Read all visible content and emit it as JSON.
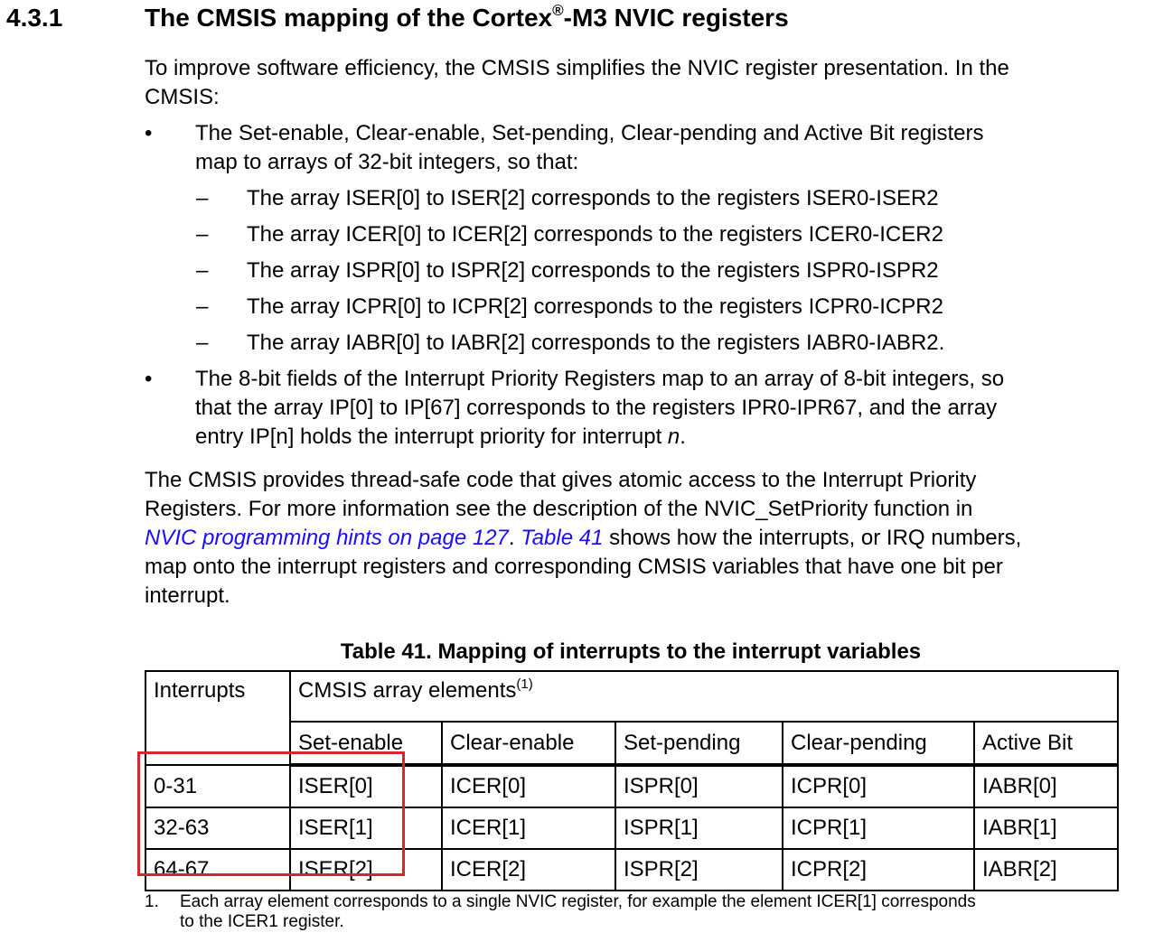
{
  "section": {
    "number": "4.3.1",
    "title_pre": "The CMSIS mapping of the Cortex",
    "title_reg": "®",
    "title_post": "-M3 NVIC registers"
  },
  "intro": {
    "line1": "To improve software efficiency, the CMSIS simplifies the NVIC register presentation. In the",
    "line2": "CMSIS:"
  },
  "bullets": [
    {
      "symbol": "•",
      "lines": [
        "The Set-enable, Clear-enable, Set-pending, Clear-pending and Active Bit registers",
        "map to arrays of 32-bit integers, so that:"
      ],
      "sub_items": [
        {
          "symbol": "–",
          "text": "The array ISER[0] to ISER[2] corresponds to the registers ISER0-ISER2"
        },
        {
          "symbol": "–",
          "text": "The array ICER[0] to ICER[2] corresponds to the registers ICER0-ICER2"
        },
        {
          "symbol": "–",
          "text": "The array ISPR[0] to ISPR[2] corresponds to the registers ISPR0-ISPR2"
        },
        {
          "symbol": "–",
          "text": "The array ICPR[0] to ICPR[2] corresponds to the registers ICPR0-ICPR2"
        },
        {
          "symbol": "–",
          "text": "The array IABR[0] to IABR[2] corresponds to the registers IABR0-IABR2."
        }
      ]
    },
    {
      "symbol": "•",
      "lines": [
        "The 8-bit fields of the Interrupt Priority Registers map to an array of 8-bit integers, so",
        "that the array IP[0] to IP[67] corresponds to the registers IPR0-IPR67, and the array"
      ],
      "last_line_pre": "entry IP[n] holds the interrupt priority for interrupt ",
      "last_line_italic": "n",
      "last_line_post": "."
    }
  ],
  "para2": {
    "line1": "The CMSIS provides thread-safe code that gives atomic access to the Interrupt Priority",
    "line2": "Registers. For more information see the description of the NVIC_SetPriority function in",
    "link1": "NVIC programming hints on page 127",
    "sep": ". ",
    "link2": "Table 41",
    "line3_post": " shows how the interrupts, or IRQ numbers,",
    "line4": "map onto the interrupt registers and corresponding CMSIS variables that have one bit per",
    "line5": "interrupt."
  },
  "table": {
    "caption": "Table 41. Mapping of interrupts to the interrupt variables",
    "col_interrupts": "Interrupts",
    "col_group": "CMSIS array elements",
    "col_group_note": "(1)",
    "subheaders": [
      "Set-enable",
      "Clear-enable",
      "Set-pending",
      "Clear-pending",
      "Active Bit"
    ],
    "rows": [
      [
        "0-31",
        "ISER[0]",
        "ICER[0]",
        "ISPR[0]",
        "ICPR[0]",
        "IABR[0]"
      ],
      [
        "32-63",
        "ISER[1]",
        "ICER[1]",
        "ISPR[1]",
        "ICPR[1]",
        "IABR[1]"
      ],
      [
        "64-67",
        "ISER[2]",
        "ICER[2]",
        "ISPR[2]",
        "ICPR[2]",
        "IABR[2]"
      ]
    ],
    "highlight_color": "#d8252a"
  },
  "footnote": {
    "number": "1.",
    "line1": "Each array element corresponds to a single NVIC register, for example the element ICER[1] corresponds",
    "line2": "to the ICER1 register."
  },
  "colors": {
    "link": "#1a0dff",
    "text": "#000000",
    "highlight": "#d8252a"
  }
}
